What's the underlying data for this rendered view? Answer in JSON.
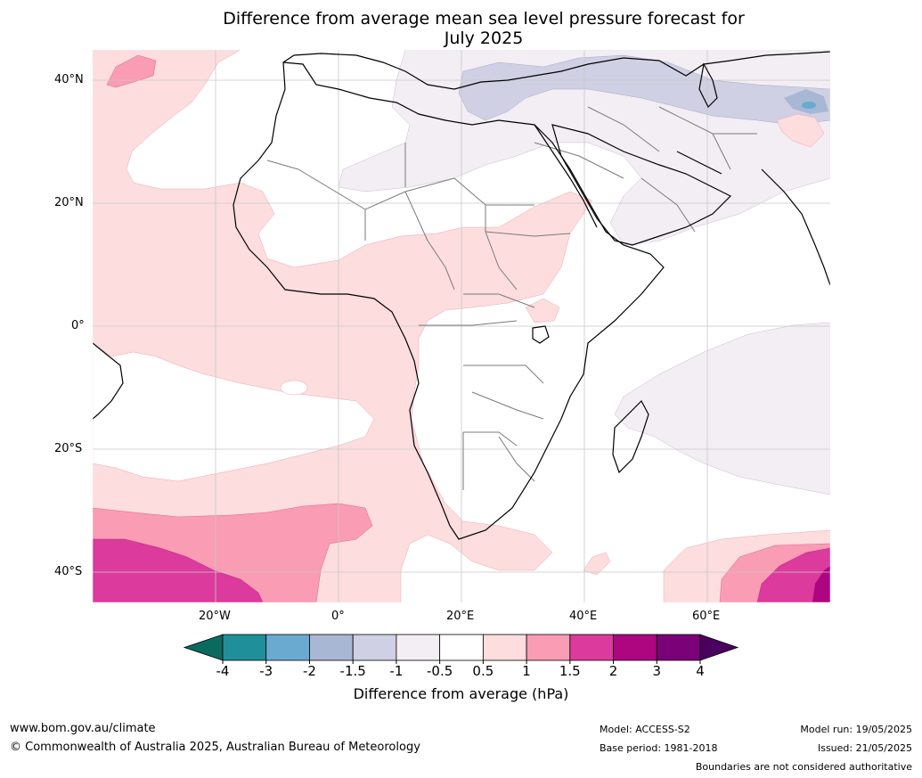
{
  "title_line1": "Difference from average mean sea level pressure forecast for",
  "title_line2": "July 2025",
  "lat_labels": [
    "40°N",
    "20°N",
    "0°",
    "20°S",
    "40°S"
  ],
  "lon_labels": [
    "20°W",
    "0°",
    "20°E",
    "40°E",
    "60°E"
  ],
  "colorbar": {
    "title": "Difference from average (hPa)",
    "ticks": [
      "-4",
      "-3",
      "-2",
      "-1.5",
      "-1",
      "-0.5",
      "0.5",
      "1",
      "1.5",
      "2",
      "3",
      "4"
    ],
    "colors": [
      "#0a6a5e",
      "#1f8f9a",
      "#6aaad0",
      "#a8b8d4",
      "#cfd0e3",
      "#f3edf4",
      "#ffffff",
      "#fdddde",
      "#f99cb4",
      "#dc3a9c",
      "#ae0580",
      "#7a0177",
      "#4b0060"
    ]
  },
  "palette": {
    "pink_light": "#fdddde",
    "pink_mid": "#f99cb4",
    "magenta": "#dc3a9c",
    "dark_magenta": "#ae0580",
    "lilac": "#f3edf4",
    "blue_grey": "#cfd0e3",
    "blue_mid": "#a8b8d4",
    "teal": "#6aaad0"
  },
  "footer": {
    "url": "www.bom.gov.au/climate",
    "copyright": "© Commonwealth of Australia 2025, Australian Bureau of Meteorology",
    "model": "Model: ACCESS-S2",
    "base_period": "Base period: 1981-2018",
    "model_run": "Model run: 19/05/2025",
    "issued": "Issued: 21/05/2025",
    "disclaimer": "Boundaries are not considered authoritative"
  }
}
